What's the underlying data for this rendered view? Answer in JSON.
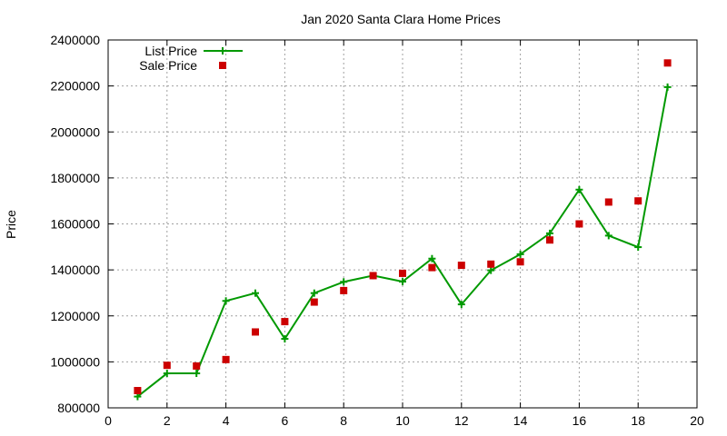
{
  "chart_data": {
    "type": "line",
    "title": "Jan 2020 Santa Clara Home Prices",
    "xlabel": "",
    "ylabel": "Price",
    "xlim": [
      0,
      20
    ],
    "ylim": [
      800000,
      2400000
    ],
    "xticks": [
      0,
      2,
      4,
      6,
      8,
      10,
      12,
      14,
      16,
      18,
      20
    ],
    "yticks": [
      800000,
      1000000,
      1200000,
      1400000,
      1600000,
      1800000,
      2000000,
      2200000,
      2400000
    ],
    "xtick_labels": [
      "0",
      "2",
      "4",
      "6",
      "8",
      "10",
      "12",
      "14",
      "16",
      "18",
      "20"
    ],
    "ytick_labels": [
      "800000",
      "1000000",
      "1200000",
      "1400000",
      "1600000",
      "1800000",
      "2000000",
      "2200000",
      "2400000"
    ],
    "grid": true,
    "legend_position": "top-left",
    "series": [
      {
        "name": "List Price",
        "style": "linespoints",
        "marker": "plus",
        "color": "#009900",
        "x": [
          1,
          2,
          3,
          4,
          5,
          6,
          7,
          8,
          9,
          10,
          11,
          12,
          13,
          14,
          15,
          16,
          17,
          18,
          19
        ],
        "values": [
          849000,
          950000,
          950000,
          1265000,
          1299000,
          1100000,
          1299000,
          1348000,
          1375000,
          1349000,
          1449000,
          1250000,
          1398000,
          1468000,
          1559000,
          1749000,
          1549000,
          1499000,
          2195000
        ]
      },
      {
        "name": "Sale Price",
        "style": "points",
        "marker": "square",
        "color": "#cc0000",
        "x": [
          1,
          2,
          3,
          4,
          5,
          6,
          7,
          8,
          9,
          10,
          11,
          12,
          13,
          14,
          15,
          16,
          17,
          18,
          19
        ],
        "values": [
          875000,
          985000,
          982000,
          1010000,
          1130000,
          1175000,
          1260000,
          1310000,
          1375000,
          1385000,
          1410000,
          1420000,
          1425000,
          1435000,
          1530000,
          1600000,
          1695000,
          1700000,
          2300000
        ]
      }
    ]
  }
}
